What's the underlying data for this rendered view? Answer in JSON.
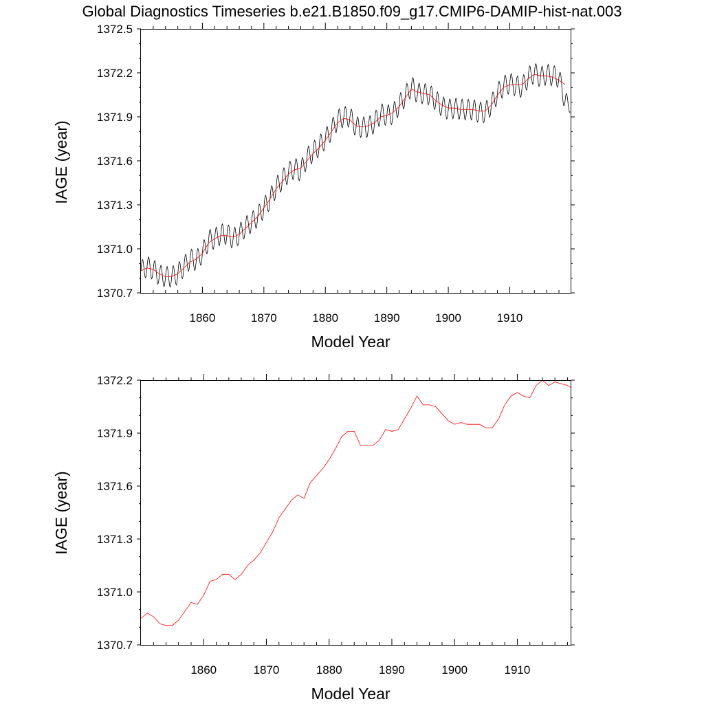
{
  "figure": {
    "title": "Global Diagnostics Timeseries b.e21.B1850.f09_g17.CMIP6-DAMIP-hist-nat.003"
  },
  "chart_data": [
    {
      "type": "line",
      "title": "",
      "xlabel": "Model Year",
      "ylabel": "IAGE (year)",
      "xlim": [
        1850,
        1919.9
      ],
      "ylim": [
        1370.7,
        1372.5
      ],
      "xticks": [
        "1860",
        "1870",
        "1880",
        "1890",
        "1900",
        "1910"
      ],
      "yticks": [
        "1370.7",
        "1371.0",
        "1371.3",
        "1371.6",
        "1371.9",
        "1372.2",
        "1372.5"
      ],
      "grid": false,
      "legend": "none",
      "series": [
        {
          "description": "monthly values (seasonal cycle, amplitude ~0.07)",
          "color": "#000000",
          "seasonal_amplitude": 0.07,
          "x": [
            1850.0,
            1851.0,
            1852.0,
            1853.0,
            1854.0,
            1855.0,
            1856.0,
            1857.0,
            1858.0,
            1859.0,
            1860.0,
            1861.0,
            1862.0,
            1863.0,
            1864.0,
            1865.0,
            1866.0,
            1867.0,
            1868.0,
            1869.0,
            1870.0,
            1871.0,
            1872.0,
            1873.0,
            1874.0,
            1875.0,
            1876.0,
            1877.0,
            1878.0,
            1879.0,
            1880.0,
            1881.0,
            1882.0,
            1883.0,
            1884.0,
            1885.0,
            1886.0,
            1887.0,
            1888.0,
            1889.0,
            1890.0,
            1891.0,
            1892.0,
            1893.0,
            1894.0,
            1895.0,
            1896.0,
            1897.0,
            1898.0,
            1899.0,
            1900.0,
            1901.0,
            1902.0,
            1903.0,
            1904.0,
            1905.0,
            1906.0,
            1907.0,
            1908.0,
            1909.0,
            1910.0,
            1911.0,
            1912.0,
            1913.0,
            1914.0,
            1915.0,
            1916.0,
            1917.0,
            1918.0,
            1919.0
          ],
          "y": [
            1370.85,
            1370.88,
            1370.86,
            1370.82,
            1370.81,
            1370.81,
            1370.83,
            1370.88,
            1370.93,
            1370.92,
            1370.97,
            1371.06,
            1371.07,
            1371.1,
            1371.1,
            1371.07,
            1371.1,
            1371.15,
            1371.18,
            1371.22,
            1371.28,
            1371.34,
            1371.42,
            1371.47,
            1371.52,
            1371.55,
            1371.53,
            1371.62,
            1371.66,
            1371.7,
            1371.75,
            1371.81,
            1371.88,
            1371.9,
            1371.9,
            1371.83,
            1371.83,
            1371.83,
            1371.86,
            1371.92,
            1371.91,
            1371.92,
            1371.98,
            1372.04,
            1372.11,
            1372.06,
            1372.06,
            1372.05,
            1372.01,
            1371.97,
            1371.95,
            1371.96,
            1371.95,
            1371.95,
            1371.95,
            1371.93,
            1371.93,
            1371.98,
            1372.06,
            1372.11,
            1372.13,
            1372.11,
            1372.1,
            1372.17,
            1372.2,
            1372.17,
            1372.19,
            1372.18,
            1372.17,
            1372.01
          ]
        },
        {
          "description": "12-month running mean",
          "color": "#ff0000",
          "x": [
            1850.0,
            1851.0,
            1852.0,
            1853.0,
            1854.0,
            1855.0,
            1856.0,
            1857.0,
            1858.0,
            1859.0,
            1860.0,
            1861.0,
            1862.0,
            1863.0,
            1864.0,
            1865.0,
            1866.0,
            1867.0,
            1868.0,
            1869.0,
            1870.0,
            1871.0,
            1872.0,
            1873.0,
            1874.0,
            1875.0,
            1876.0,
            1877.0,
            1878.0,
            1879.0,
            1880.0,
            1881.0,
            1882.0,
            1883.0,
            1884.0,
            1885.0,
            1886.0,
            1887.0,
            1888.0,
            1889.0,
            1890.0,
            1891.0,
            1892.0,
            1893.0,
            1894.0,
            1895.0,
            1896.0,
            1897.0,
            1898.0,
            1899.0,
            1900.0,
            1901.0,
            1902.0,
            1903.0,
            1904.0,
            1905.0,
            1906.0,
            1907.0,
            1908.0,
            1909.0,
            1910.0,
            1911.0,
            1912.0,
            1913.0,
            1914.0,
            1915.0,
            1916.0,
            1917.0,
            1918.0,
            1919.0
          ],
          "y": [
            1370.85,
            1370.87,
            1370.86,
            1370.83,
            1370.81,
            1370.81,
            1370.83,
            1370.87,
            1370.91,
            1370.93,
            1370.97,
            1371.04,
            1371.07,
            1371.09,
            1371.09,
            1371.08,
            1371.1,
            1371.14,
            1371.18,
            1371.22,
            1371.28,
            1371.34,
            1371.41,
            1371.46,
            1371.51,
            1371.54,
            1371.55,
            1371.6,
            1371.65,
            1371.69,
            1371.74,
            1371.8,
            1371.86,
            1371.89,
            1371.88,
            1371.84,
            1371.83,
            1371.84,
            1371.86,
            1371.9,
            1371.91,
            1371.93,
            1371.97,
            1372.03,
            1372.09,
            1372.07,
            1372.06,
            1372.05,
            1372.01,
            1371.98,
            1371.96,
            1371.96,
            1371.95,
            1371.95,
            1371.95,
            1371.94,
            1371.94,
            1371.98,
            1372.05,
            1372.1,
            1372.12,
            1372.12,
            1372.12,
            1372.16,
            1372.19,
            1372.18,
            1372.18,
            1372.17,
            1372.15,
            1372.12
          ]
        }
      ]
    },
    {
      "type": "line",
      "title": "",
      "xlabel": "Model Year",
      "ylabel": "IAGE (year)",
      "xlim": [
        1850,
        1918.5
      ],
      "ylim": [
        1370.7,
        1372.2
      ],
      "xticks": [
        "1860",
        "1870",
        "1880",
        "1890",
        "1900",
        "1910"
      ],
      "yticks": [
        "1370.7",
        "1371.0",
        "1371.3",
        "1371.6",
        "1371.9",
        "1372.2"
      ],
      "grid": false,
      "legend": "none",
      "series": [
        {
          "description": "annual means",
          "color": "#ff0000",
          "x": [
            1850.0,
            1851.0,
            1852.0,
            1853.0,
            1854.0,
            1855.0,
            1856.0,
            1857.0,
            1858.0,
            1859.0,
            1860.0,
            1861.0,
            1862.0,
            1863.0,
            1864.0,
            1865.0,
            1866.0,
            1867.0,
            1868.0,
            1869.0,
            1870.0,
            1871.0,
            1872.0,
            1873.0,
            1874.0,
            1875.0,
            1876.0,
            1877.0,
            1878.0,
            1879.0,
            1880.0,
            1881.0,
            1882.0,
            1883.0,
            1884.0,
            1885.0,
            1886.0,
            1887.0,
            1888.0,
            1889.0,
            1890.0,
            1891.0,
            1892.0,
            1893.0,
            1894.0,
            1895.0,
            1896.0,
            1897.0,
            1898.0,
            1899.0,
            1900.0,
            1901.0,
            1902.0,
            1903.0,
            1904.0,
            1905.0,
            1906.0,
            1907.0,
            1908.0,
            1909.0,
            1910.0,
            1911.0,
            1912.0,
            1913.0,
            1914.0,
            1915.0,
            1916.0,
            1917.0,
            1918.0,
            1918.5
          ],
          "y": [
            1370.85,
            1370.88,
            1370.86,
            1370.82,
            1370.81,
            1370.81,
            1370.84,
            1370.89,
            1370.94,
            1370.93,
            1370.98,
            1371.06,
            1371.07,
            1371.1,
            1371.1,
            1371.07,
            1371.1,
            1371.15,
            1371.18,
            1371.22,
            1371.28,
            1371.34,
            1371.42,
            1371.47,
            1371.52,
            1371.55,
            1371.53,
            1371.62,
            1371.66,
            1371.7,
            1371.75,
            1371.81,
            1371.88,
            1371.91,
            1371.91,
            1371.83,
            1371.83,
            1371.83,
            1371.86,
            1371.92,
            1371.91,
            1371.92,
            1371.98,
            1372.04,
            1372.11,
            1372.06,
            1372.06,
            1372.05,
            1372.01,
            1371.97,
            1371.95,
            1371.96,
            1371.95,
            1371.95,
            1371.95,
            1371.93,
            1371.93,
            1371.98,
            1372.06,
            1372.11,
            1372.13,
            1372.11,
            1372.1,
            1372.17,
            1372.2,
            1372.17,
            1372.19,
            1372.18,
            1372.17,
            1372.16
          ]
        }
      ]
    }
  ]
}
